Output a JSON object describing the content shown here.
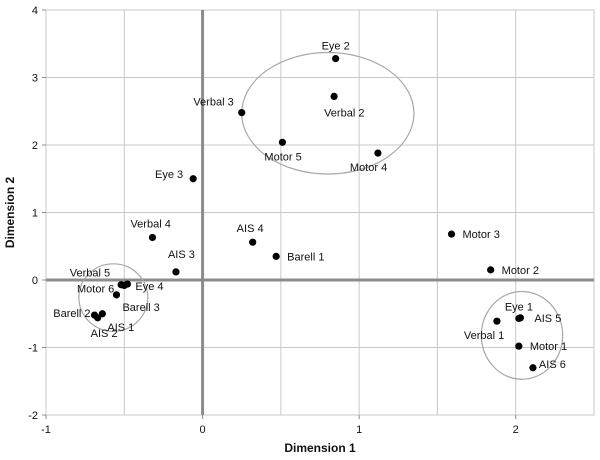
{
  "chart_data": {
    "type": "scatter",
    "title": "",
    "xlabel": "Dimension 1",
    "ylabel": "Dimension 2",
    "xlim": [
      -1,
      2.5
    ],
    "ylim": [
      -2,
      4
    ],
    "x_ticks": [
      -1,
      0,
      1,
      2
    ],
    "y_ticks": [
      -2,
      -1,
      0,
      1,
      2,
      3,
      4
    ],
    "grid": true,
    "points": [
      {
        "label": "Eye 2",
        "x": 0.85,
        "y": 3.28
      },
      {
        "label": "Verbal 3",
        "x": 0.25,
        "y": 2.48
      },
      {
        "label": "Verbal 2",
        "x": 0.84,
        "y": 2.72
      },
      {
        "label": "Motor 5",
        "x": 0.51,
        "y": 2.04
      },
      {
        "label": "Motor 4",
        "x": 1.12,
        "y": 1.88
      },
      {
        "label": "Eye 3",
        "x": -0.06,
        "y": 1.5
      },
      {
        "label": "Verbal 4",
        "x": -0.32,
        "y": 0.63
      },
      {
        "label": "AIS 4",
        "x": 0.32,
        "y": 0.56
      },
      {
        "label": "AIS 3",
        "x": -0.17,
        "y": 0.12
      },
      {
        "label": "Barell 1",
        "x": 0.47,
        "y": 0.35
      },
      {
        "label": "Motor 3",
        "x": 1.59,
        "y": 0.68
      },
      {
        "label": "Motor 2",
        "x": 1.84,
        "y": 0.15
      },
      {
        "label": "Verbal 5",
        "x": -0.52,
        "y": -0.07
      },
      {
        "label": "Motor 6",
        "x": -0.5,
        "y": -0.08
      },
      {
        "label": "Eye 4",
        "x": -0.48,
        "y": -0.06
      },
      {
        "label": "Barell 3",
        "x": -0.55,
        "y": -0.22
      },
      {
        "label": "Barell 2",
        "x": -0.69,
        "y": -0.52
      },
      {
        "label": "AIS 2",
        "x": -0.67,
        "y": -0.56
      },
      {
        "label": "AIS 1",
        "x": -0.64,
        "y": -0.5
      },
      {
        "label": "Eye 1",
        "x": 2.02,
        "y": -0.57
      },
      {
        "label": "AIS 5",
        "x": 2.03,
        "y": -0.56
      },
      {
        "label": "Verbal 1",
        "x": 1.88,
        "y": -0.61
      },
      {
        "label": "Motor 1",
        "x": 2.02,
        "y": -0.98
      },
      {
        "label": "AIS 6",
        "x": 2.11,
        "y": -1.3
      }
    ],
    "cluster_ellipses": [
      {
        "cx": 0.8,
        "cy": 2.47,
        "rx": 0.55,
        "ry": 0.9
      },
      {
        "cx": -0.57,
        "cy": -0.26,
        "rx": 0.22,
        "ry": 0.5
      },
      {
        "cx": 2.04,
        "cy": -0.82,
        "rx": 0.26,
        "ry": 0.65
      }
    ]
  }
}
